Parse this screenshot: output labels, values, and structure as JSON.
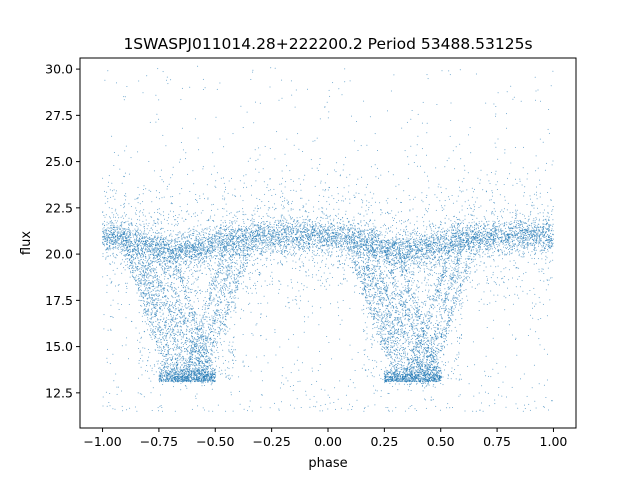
{
  "chart_data": {
    "type": "scatter",
    "title": "1SWASPJ011014.28+222200.2 Period 53488.53125s",
    "xlabel": "phase",
    "ylabel": "flux",
    "xlim": [
      -1.1,
      1.1
    ],
    "ylim": [
      10.6,
      30.6
    ],
    "xticks": [
      -1.0,
      -0.75,
      -0.5,
      -0.25,
      0.0,
      0.25,
      0.5,
      0.75,
      1.0
    ],
    "xtick_labels": [
      "−1.00",
      "−0.75",
      "−0.50",
      "−0.25",
      "0.00",
      "0.25",
      "0.50",
      "0.75",
      "1.00"
    ],
    "yticks": [
      12.5,
      15.0,
      17.5,
      20.0,
      22.5,
      25.0,
      27.5,
      30.0
    ],
    "ytick_labels": [
      "12.5",
      "15.0",
      "17.5",
      "20.0",
      "22.5",
      "25.0",
      "27.5",
      "30.0"
    ],
    "grid": false,
    "legend": "none",
    "point_color": "#1f77b4",
    "x_range": [
      -1.0,
      1.0
    ],
    "baseline_flux": [
      [
        -1.0,
        20.9
      ],
      [
        -0.9,
        20.85
      ],
      [
        -0.8,
        20.6
      ],
      [
        -0.7,
        20.2
      ],
      [
        -0.6,
        20.3
      ],
      [
        -0.5,
        20.6
      ],
      [
        -0.4,
        20.8
      ],
      [
        -0.3,
        20.9
      ],
      [
        -0.2,
        21.0
      ],
      [
        -0.1,
        21.0
      ],
      [
        0.0,
        21.0
      ],
      [
        0.1,
        20.85
      ],
      [
        0.2,
        20.6
      ],
      [
        0.3,
        20.2
      ],
      [
        0.4,
        20.3
      ],
      [
        0.5,
        20.6
      ],
      [
        0.6,
        20.8
      ],
      [
        0.7,
        20.9
      ],
      [
        0.8,
        21.0
      ],
      [
        0.9,
        21.0
      ],
      [
        1.0,
        21.0
      ]
    ],
    "eclipse_floor_flux": 13.2,
    "eclipse_floor_phase_ranges": [
      [
        -0.75,
        -0.5
      ],
      [
        0.25,
        0.5
      ]
    ],
    "eclipse_min_flux_range": [
      12.0,
      13.4
    ],
    "outlier_flux_range": [
      11.5,
      30.2
    ]
  }
}
